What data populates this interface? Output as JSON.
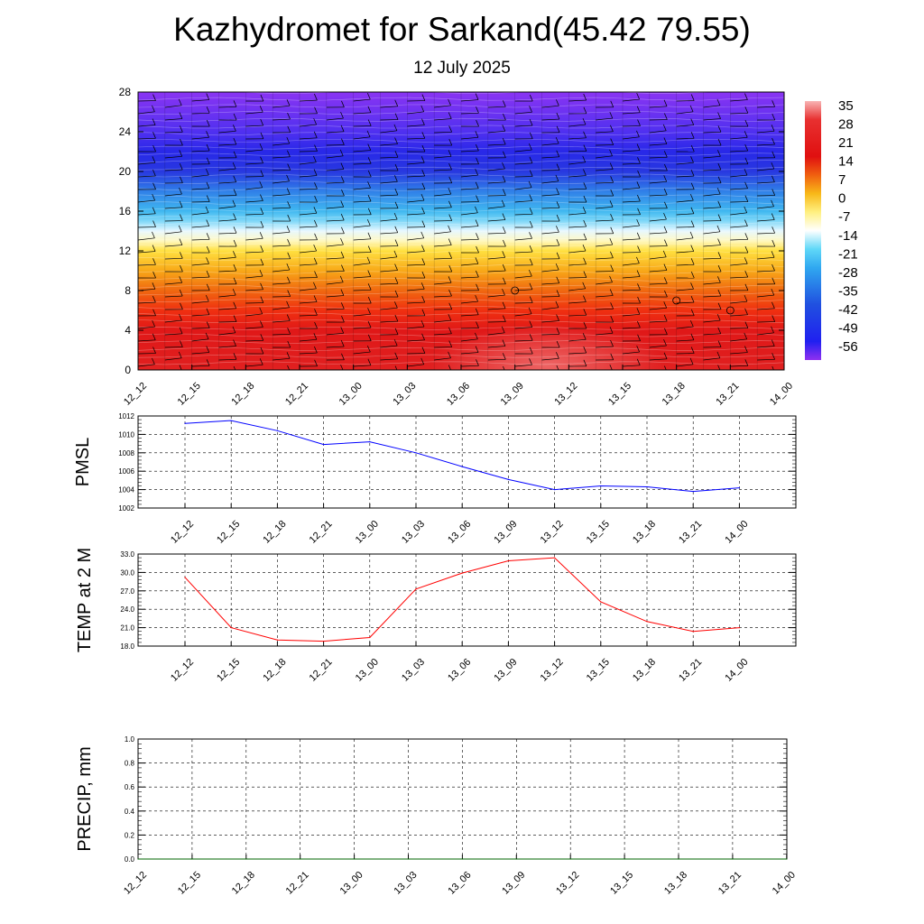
{
  "page": {
    "title": "Kazhydromet for Sarkand(45.42 79.55)",
    "subtitle": "12 July 2025"
  },
  "chart_data": [
    {
      "type": "heatmap",
      "name": "temperature-wind-profile",
      "ylim": [
        0,
        28
      ],
      "yticks": [
        0,
        4,
        8,
        12,
        16,
        20,
        24,
        28
      ],
      "x_labels": [
        "12_12",
        "12_15",
        "12_18",
        "12_21",
        "13_00",
        "13_03",
        "13_06",
        "13_09",
        "13_12",
        "13_15",
        "13_18",
        "13_21",
        "14_00"
      ],
      "colorbar": {
        "labels": [
          "35",
          "28",
          "21",
          "14",
          "7",
          "0",
          "-7",
          "-14",
          "-21",
          "-28",
          "-35",
          "-42",
          "-49",
          "-56"
        ],
        "stops": [
          {
            "v": 35,
            "color": "#f8b4b4"
          },
          {
            "v": 28,
            "color": "#e83030"
          },
          {
            "v": 14,
            "color": "#e01010"
          },
          {
            "v": 7,
            "color": "#f06010"
          },
          {
            "v": 0,
            "color": "#f8b818"
          },
          {
            "v": -7,
            "color": "#fff080"
          },
          {
            "v": -14,
            "color": "#ffffff"
          },
          {
            "v": -21,
            "color": "#60d8f8"
          },
          {
            "v": -28,
            "color": "#30a8f0"
          },
          {
            "v": -42,
            "color": "#2050e0"
          },
          {
            "v": -56,
            "color": "#2020f0"
          },
          {
            "v": -63,
            "color": "#9030f0"
          }
        ]
      },
      "profile_stops": [
        {
          "y": 0,
          "color": "#e02020"
        },
        {
          "y": 4,
          "color": "#e01818"
        },
        {
          "y": 6,
          "color": "#f03010"
        },
        {
          "y": 8,
          "color": "#f06810"
        },
        {
          "y": 10,
          "color": "#f8a818"
        },
        {
          "y": 12,
          "color": "#ffe040"
        },
        {
          "y": 13,
          "color": "#fff8c0"
        },
        {
          "y": 14,
          "color": "#e8f8ff"
        },
        {
          "y": 15,
          "color": "#80d8f8"
        },
        {
          "y": 16,
          "color": "#40b8f0"
        },
        {
          "y": 18,
          "color": "#3080e8"
        },
        {
          "y": 20,
          "color": "#2838e0"
        },
        {
          "y": 22,
          "color": "#2828e8"
        },
        {
          "y": 24,
          "color": "#5030f0"
        },
        {
          "y": 28,
          "color": "#8a34f2"
        }
      ]
    },
    {
      "type": "line",
      "ylabel": "PMSL",
      "ylim": [
        1002,
        1012
      ],
      "yticks": [
        "1002",
        "1004",
        "1006",
        "1008",
        "1010",
        "1012"
      ],
      "categories": [
        "12_12",
        "12_15",
        "12_18",
        "12_21",
        "13_00",
        "13_03",
        "13_06",
        "13_09",
        "13_12",
        "13_15",
        "13_18",
        "13_21",
        "14_00"
      ],
      "series": [
        {
          "values": [
            1011.2,
            1011.5,
            1010.4,
            1008.9,
            1009.2,
            1008.0,
            1006.5,
            1005.1,
            1004.0,
            1004.4,
            1004.3,
            1003.8,
            1004.2
          ],
          "color": "#0000ff"
        }
      ]
    },
    {
      "type": "line",
      "ylabel": "TEMP at 2 M",
      "ylim": [
        18,
        33
      ],
      "yticks": [
        "18.0",
        "21.0",
        "24.0",
        "27.0",
        "30.0",
        "33.0"
      ],
      "categories": [
        "12_12",
        "12_15",
        "12_18",
        "12_21",
        "13_00",
        "13_03",
        "13_06",
        "13_09",
        "13_12",
        "13_15",
        "13_18",
        "13_21",
        "14_00"
      ],
      "series": [
        {
          "values": [
            29.2,
            21.0,
            19.0,
            18.8,
            19.4,
            27.3,
            29.9,
            31.9,
            32.4,
            25.2,
            22.0,
            20.4,
            21.0
          ],
          "color": "#ff0000"
        }
      ]
    },
    {
      "type": "line",
      "ylabel": "PRECIP, mm",
      "ylim": [
        0,
        1
      ],
      "yticks": [
        "0.0",
        "0.2",
        "0.4",
        "0.6",
        "0.8",
        "1.0"
      ],
      "x_labels": [
        "12_12",
        "12_15",
        "12_18",
        "12_21",
        "13_00",
        "13_03",
        "13_06",
        "13_09",
        "13_12",
        "13_15",
        "13_18",
        "13_21",
        "14_00"
      ],
      "series": [
        {
          "values": [
            0,
            0,
            0,
            0,
            0,
            0,
            0,
            0,
            0,
            0,
            0,
            0,
            0
          ],
          "color": "#006400"
        }
      ]
    }
  ]
}
